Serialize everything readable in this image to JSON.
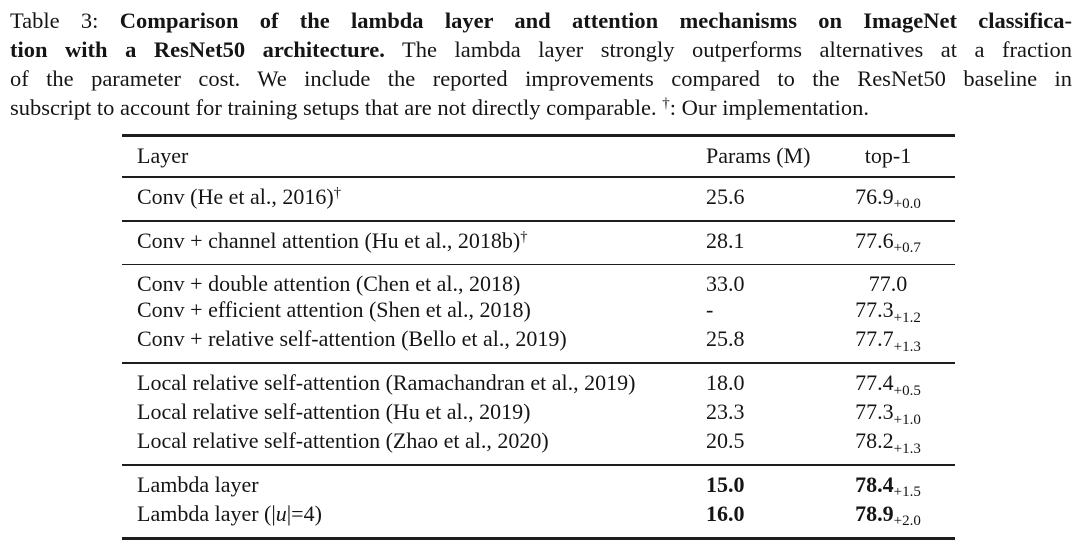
{
  "page": {
    "background_color": "#ffffff",
    "text_color": "#151515",
    "rule_color": "#1d1d1d"
  },
  "caption": {
    "label": "Table 3:",
    "lines": [
      {
        "justify_full": true,
        "segments": [
          {
            "t": "Table 3:  ",
            "b": false
          },
          {
            "t": "Comparison of the lambda layer and attention mechanisms on ImageNet classifica-",
            "b": true
          }
        ]
      },
      {
        "justify_full": true,
        "segments": [
          {
            "t": "tion with a ResNet50 architecture.",
            "b": true
          },
          {
            "t": " The lambda layer strongly outperforms alternatives at a fraction",
            "b": false
          }
        ]
      },
      {
        "justify_full": true,
        "segments": [
          {
            "t": "of the parameter cost. We include the reported improvements compared to the ResNet50 baseline in",
            "b": false
          }
        ]
      },
      {
        "justify_full": false,
        "segments": [
          {
            "t": "subscript to account for training setups that are not directly comparable. ",
            "b": false
          },
          {
            "t": "†",
            "sup": true
          },
          {
            "t": ": Our implementation.",
            "b": false
          }
        ]
      }
    ]
  },
  "table": {
    "columns": [
      {
        "label": "Layer"
      },
      {
        "label": "Params (M)"
      },
      {
        "label": "top-1"
      }
    ],
    "sections": [
      {
        "rows": [
          {
            "layer": [
              {
                "t": "Conv (He et al., 2016)"
              },
              {
                "t": "†",
                "sup": true
              }
            ],
            "params": "25.6",
            "top1": "76.9",
            "top1_sub": "+0.0",
            "bold": false
          }
        ]
      },
      {
        "rows": [
          {
            "layer": [
              {
                "t": "Conv + channel attention (Hu et al., 2018b)"
              },
              {
                "t": "†",
                "sup": true
              }
            ],
            "params": "28.1",
            "top1": "77.6",
            "top1_sub": "+0.7",
            "bold": false
          }
        ]
      },
      {
        "rows": [
          {
            "layer": [
              {
                "t": "Conv + double attention (Chen et al., 2018)"
              }
            ],
            "params": "33.0",
            "top1": "77.0",
            "top1_sub": "",
            "bold": false
          },
          {
            "layer": [
              {
                "t": "Conv + efficient attention (Shen et al., 2018)"
              }
            ],
            "params": "-",
            "top1": "77.3",
            "top1_sub": "+1.2",
            "bold": false
          },
          {
            "layer": [
              {
                "t": "Conv + relative self-attention (Bello et al., 2019)"
              }
            ],
            "params": "25.8",
            "top1": "77.7",
            "top1_sub": "+1.3",
            "bold": false
          }
        ]
      },
      {
        "rows": [
          {
            "layer": [
              {
                "t": "Local relative self-attention (Ramachandran et al., 2019)"
              }
            ],
            "params": "18.0",
            "top1": "77.4",
            "top1_sub": "+0.5",
            "bold": false
          },
          {
            "layer": [
              {
                "t": "Local relative self-attention (Hu et al., 2019)"
              }
            ],
            "params": "23.3",
            "top1": "77.3",
            "top1_sub": "+1.0",
            "bold": false
          },
          {
            "layer": [
              {
                "t": "Local relative self-attention (Zhao et al., 2020)"
              }
            ],
            "params": "20.5",
            "top1": "78.2",
            "top1_sub": "+1.3",
            "bold": false
          }
        ]
      },
      {
        "rows": [
          {
            "layer": [
              {
                "t": "Lambda layer"
              }
            ],
            "params": "15.0",
            "top1": "78.4",
            "top1_sub": "+1.5",
            "bold": true
          },
          {
            "layer": [
              {
                "t": "Lambda layer (|"
              },
              {
                "t": "u",
                "i": true
              },
              {
                "t": "|=4)"
              }
            ],
            "params": "16.0",
            "top1": "78.9",
            "top1_sub": "+2.0",
            "bold": true
          }
        ]
      }
    ]
  }
}
